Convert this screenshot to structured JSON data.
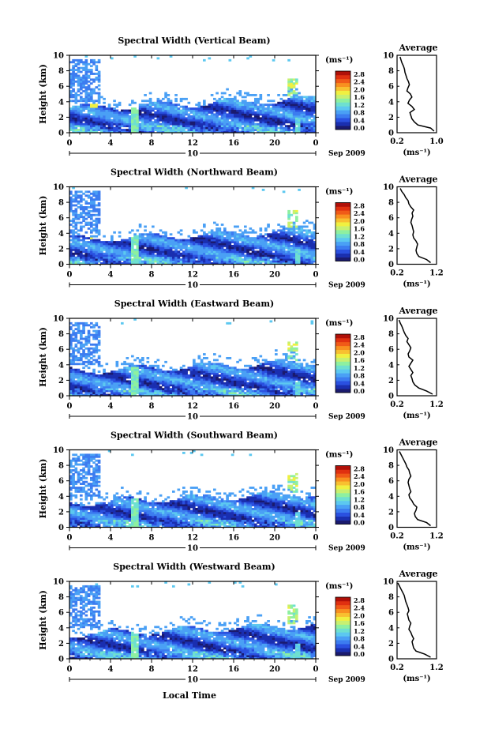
{
  "figure": {
    "date_label": "Sep 2009",
    "day_label": "10",
    "xlabel": "Local Time",
    "ylabel": "Height (km)",
    "unit_label": "(ms⁻¹)",
    "avg_title": "Average",
    "avg_xlabel": "(ms⁻¹)"
  },
  "colorbar": {
    "ticks": [
      "2.8",
      "2.4",
      "2.0",
      "1.6",
      "1.2",
      "0.8",
      "0.4",
      "0.0"
    ],
    "colors": [
      "#1a1a6e",
      "#1a2fb0",
      "#2a50e0",
      "#3c7cf0",
      "#4aa0f5",
      "#5cc8f0",
      "#6ee0d0",
      "#8ef0a0",
      "#c8f070",
      "#f0f040",
      "#f8c030",
      "#f89020",
      "#f05a18",
      "#e03010",
      "#b01008"
    ]
  },
  "chart_data": [
    {
      "type": "heatmap",
      "title": "Spectral Width (Vertical Beam)",
      "x_ticks": [
        "0",
        "4",
        "8",
        "12",
        "16",
        "20",
        "0"
      ],
      "y_ticks": [
        "0",
        "2",
        "4",
        "6",
        "8",
        "10"
      ],
      "xlim": [
        0,
        24
      ],
      "ylim": [
        0,
        10
      ],
      "zlim": [
        0.0,
        2.8
      ],
      "avg_profile": {
        "x_ticks": [
          "0.2",
          "1.0"
        ],
        "xlim": [
          0.2,
          1.0
        ],
        "ylim": [
          0,
          10
        ],
        "height": [
          0.2,
          0.6,
          1.0,
          1.4,
          1.8,
          2.2,
          2.6,
          3.0,
          3.4,
          3.8,
          4.2,
          4.6,
          5.0,
          5.4,
          5.8,
          6.2,
          6.6,
          7.0,
          7.4,
          7.8,
          8.2,
          8.6,
          9.0,
          9.4,
          9.8
        ],
        "values": [
          0.95,
          0.88,
          0.62,
          0.55,
          0.5,
          0.48,
          0.46,
          0.55,
          0.5,
          0.42,
          0.45,
          0.5,
          0.47,
          0.4,
          0.42,
          0.45,
          0.43,
          0.4,
          0.38,
          0.36,
          0.35,
          0.33,
          0.3,
          0.28,
          0.26
        ]
      }
    },
    {
      "type": "heatmap",
      "title": "Spectral Width (Northward Beam)",
      "x_ticks": [
        "0",
        "4",
        "8",
        "12",
        "16",
        "20",
        "0"
      ],
      "y_ticks": [
        "0",
        "2",
        "4",
        "6",
        "8",
        "10"
      ],
      "xlim": [
        0,
        24
      ],
      "ylim": [
        0,
        10
      ],
      "zlim": [
        0.0,
        2.8
      ],
      "avg_profile": {
        "x_ticks": [
          "0.2",
          "1.2"
        ],
        "xlim": [
          0.2,
          1.2
        ],
        "ylim": [
          0,
          10
        ],
        "height": [
          0.2,
          0.6,
          1.0,
          1.4,
          1.8,
          2.2,
          2.6,
          3.0,
          3.4,
          3.8,
          4.2,
          4.6,
          5.0,
          5.4,
          5.8,
          6.2,
          6.6,
          7.0,
          7.4,
          7.8,
          8.2,
          8.6,
          9.0,
          9.4,
          9.8
        ],
        "values": [
          1.05,
          0.95,
          0.75,
          0.7,
          0.68,
          0.7,
          0.72,
          0.68,
          0.62,
          0.6,
          0.62,
          0.6,
          0.58,
          0.55,
          0.57,
          0.6,
          0.58,
          0.62,
          0.55,
          0.5,
          0.48,
          0.42,
          0.38,
          0.32,
          0.28
        ]
      }
    },
    {
      "type": "heatmap",
      "title": "Spectral Width (Eastward Beam)",
      "x_ticks": [
        "0",
        "4",
        "8",
        "12",
        "16",
        "20",
        "0"
      ],
      "y_ticks": [
        "0",
        "2",
        "4",
        "6",
        "8",
        "10"
      ],
      "xlim": [
        0,
        24
      ],
      "ylim": [
        0,
        10
      ],
      "zlim": [
        0.0,
        2.8
      ],
      "avg_profile": {
        "x_ticks": [
          "0.2",
          "1.2"
        ],
        "xlim": [
          0.2,
          1.2
        ],
        "ylim": [
          0,
          10
        ],
        "height": [
          0.2,
          0.6,
          1.0,
          1.4,
          1.8,
          2.2,
          2.6,
          3.0,
          3.4,
          3.8,
          4.2,
          4.6,
          5.0,
          5.4,
          5.8,
          6.2,
          6.6,
          7.0,
          7.4,
          7.8,
          8.2,
          8.6,
          9.0,
          9.4,
          9.8
        ],
        "values": [
          1.1,
          0.95,
          0.75,
          0.65,
          0.6,
          0.58,
          0.55,
          0.6,
          0.55,
          0.5,
          0.55,
          0.6,
          0.5,
          0.48,
          0.52,
          0.55,
          0.5,
          0.45,
          0.48,
          0.42,
          0.38,
          0.35,
          0.32,
          0.28,
          0.25
        ]
      }
    },
    {
      "type": "heatmap",
      "title": "Spectral Width (Southward Beam)",
      "x_ticks": [
        "0",
        "4",
        "8",
        "12",
        "16",
        "20",
        "0"
      ],
      "y_ticks": [
        "0",
        "2",
        "4",
        "6",
        "8",
        "10"
      ],
      "xlim": [
        0,
        24
      ],
      "ylim": [
        0,
        10
      ],
      "zlim": [
        0.0,
        2.8
      ],
      "avg_profile": {
        "x_ticks": [
          "0.2",
          "1.2"
        ],
        "xlim": [
          0.2,
          1.2
        ],
        "ylim": [
          0,
          10
        ],
        "height": [
          0.2,
          0.6,
          1.0,
          1.4,
          1.8,
          2.2,
          2.6,
          3.0,
          3.4,
          3.8,
          4.2,
          4.6,
          5.0,
          5.4,
          5.8,
          6.2,
          6.6,
          7.0,
          7.4,
          7.8,
          8.2,
          8.6,
          9.0,
          9.4,
          9.8
        ],
        "values": [
          1.05,
          0.95,
          0.72,
          0.66,
          0.64,
          0.68,
          0.7,
          0.62,
          0.58,
          0.52,
          0.5,
          0.55,
          0.52,
          0.5,
          0.48,
          0.5,
          0.55,
          0.52,
          0.5,
          0.45,
          0.42,
          0.38,
          0.34,
          0.3,
          0.26
        ]
      }
    },
    {
      "type": "heatmap",
      "title": "Spectral Width (Westward Beam)",
      "x_ticks": [
        "0",
        "4",
        "8",
        "12",
        "16",
        "20",
        "0"
      ],
      "y_ticks": [
        "0",
        "2",
        "4",
        "6",
        "8",
        "10"
      ],
      "xlim": [
        0,
        24
      ],
      "ylim": [
        0,
        10
      ],
      "zlim": [
        0.0,
        2.8
      ],
      "avg_profile": {
        "x_ticks": [
          "0.2",
          "1.2"
        ],
        "xlim": [
          0.2,
          1.2
        ],
        "ylim": [
          0,
          10
        ],
        "height": [
          0.2,
          0.6,
          1.0,
          1.4,
          1.8,
          2.2,
          2.6,
          3.0,
          3.4,
          3.8,
          4.2,
          4.6,
          5.0,
          5.4,
          5.8,
          6.2,
          6.6,
          7.0,
          7.4,
          7.8,
          8.2,
          8.6,
          9.0,
          9.4,
          9.8
        ],
        "values": [
          1.05,
          0.9,
          0.68,
          0.62,
          0.6,
          0.58,
          0.62,
          0.58,
          0.55,
          0.5,
          0.52,
          0.55,
          0.5,
          0.48,
          0.46,
          0.5,
          0.48,
          0.45,
          0.42,
          0.4,
          0.38,
          0.34,
          0.3,
          0.26,
          0.22
        ]
      }
    }
  ]
}
